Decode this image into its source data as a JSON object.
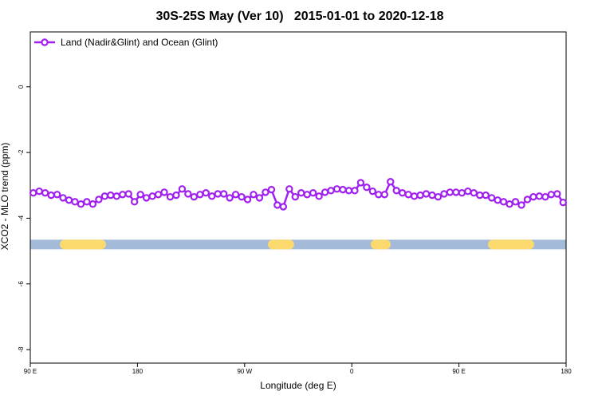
{
  "chart_data": {
    "type": "line",
    "title": "30S-25S May (Ver 10)   2015-01-01 to 2020-12-18",
    "x_label": "Longitude (deg E)",
    "y_label": "XCO2 - MLO trend (ppm)",
    "legend": "top-left",
    "xlim": [
      90,
      540
    ],
    "xticks": [
      {
        "value": 90,
        "label": "90 E"
      },
      {
        "value": 180,
        "label": "180"
      },
      {
        "value": 270,
        "label": "90 W"
      },
      {
        "value": 360,
        "label": "0"
      },
      {
        "value": 450,
        "label": "90 E"
      },
      {
        "value": 540,
        "label": "180"
      }
    ],
    "ylim": [
      -8.41,
      1.67
    ],
    "yticks": [
      0,
      -2,
      -4,
      -6,
      -8
    ],
    "band": {
      "y": -4.8,
      "ocean_color": "#a3bbd9",
      "land_color": "#fcd96c",
      "land": [
        [
          114.8,
          153.6
        ],
        [
          289.6,
          311.6
        ],
        [
          375.9,
          392.7
        ],
        [
          474.4,
          513.2
        ]
      ]
    },
    "x": [
      92.5,
      97.5,
      102.5,
      107.5,
      112.5,
      117.5,
      122.5,
      127.5,
      132.5,
      137.5,
      142.5,
      147.5,
      152.5,
      157.5,
      162.5,
      167.5,
      172.5,
      177.5,
      182.5,
      187.5,
      192.5,
      197.5,
      202.5,
      207.5,
      212.5,
      217.5,
      222.5,
      227.5,
      232.5,
      237.5,
      242.5,
      247.5,
      252.5,
      257.5,
      262.5,
      267.5,
      272.5,
      277.5,
      282.5,
      287.5,
      292.5,
      297.5,
      302.5,
      307.5,
      312.5,
      317.5,
      322.5,
      327.5,
      332.5,
      337.5,
      342.5,
      347.5,
      352.5,
      357.5,
      362.5,
      367.5,
      372.5,
      377.5,
      382.5,
      387.5,
      392.5,
      397.5,
      402.5,
      407.5,
      412.5,
      417.5,
      422.5,
      427.5,
      432.5,
      437.5,
      442.5,
      447.5,
      452.5,
      457.5,
      462.5,
      467.5,
      472.5,
      477.5,
      482.5,
      487.5,
      492.5,
      497.5,
      502.5,
      507.5,
      512.5,
      517.5,
      522.5,
      527.5,
      532.5,
      537.5
    ],
    "series": [
      {
        "name": "Land (Nadir&Glint) and Ocean (Glint)",
        "color": "#a020f0",
        "values": [
          -3.23,
          -3.18,
          -3.23,
          -3.3,
          -3.28,
          -3.38,
          -3.45,
          -3.5,
          -3.57,
          -3.5,
          -3.57,
          -3.43,
          -3.33,
          -3.3,
          -3.33,
          -3.28,
          -3.26,
          -3.5,
          -3.28,
          -3.38,
          -3.33,
          -3.28,
          -3.21,
          -3.35,
          -3.3,
          -3.11,
          -3.26,
          -3.35,
          -3.28,
          -3.23,
          -3.33,
          -3.26,
          -3.26,
          -3.38,
          -3.28,
          -3.35,
          -3.43,
          -3.28,
          -3.38,
          -3.21,
          -3.13,
          -3.6,
          -3.65,
          -3.11,
          -3.35,
          -3.23,
          -3.28,
          -3.23,
          -3.33,
          -3.21,
          -3.16,
          -3.11,
          -3.13,
          -3.16,
          -3.16,
          -2.92,
          -3.06,
          -3.18,
          -3.28,
          -3.28,
          -2.89,
          -3.16,
          -3.23,
          -3.28,
          -3.33,
          -3.3,
          -3.26,
          -3.3,
          -3.35,
          -3.26,
          -3.21,
          -3.21,
          -3.23,
          -3.18,
          -3.23,
          -3.3,
          -3.3,
          -3.38,
          -3.45,
          -3.5,
          -3.57,
          -3.5,
          -3.6,
          -3.43,
          -3.35,
          -3.33,
          -3.35,
          -3.28,
          -3.26,
          -3.52
        ]
      }
    ]
  }
}
